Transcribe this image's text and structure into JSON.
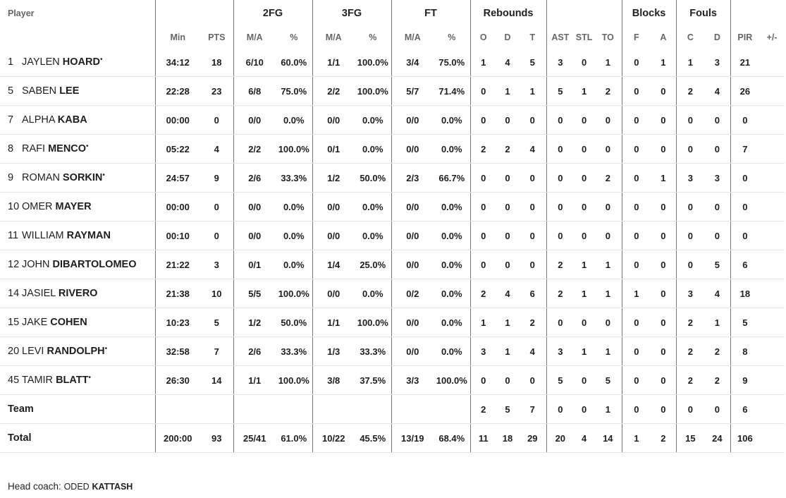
{
  "headers": {
    "player": "Player",
    "groups": {
      "fg2": "2FG",
      "fg3": "3FG",
      "ft": "FT",
      "rebounds": "Rebounds",
      "blocks": "Blocks",
      "fouls": "Fouls"
    },
    "cols": {
      "min": "Min",
      "pts": "PTS",
      "fg2_ma": "M/A",
      "fg2_pct": "%",
      "fg3_ma": "M/A",
      "fg3_pct": "%",
      "ft_ma": "M/A",
      "ft_pct": "%",
      "o": "O",
      "d": "D",
      "t": "T",
      "ast": "AST",
      "stl": "STL",
      "to": "TO",
      "bf": "F",
      "ba": "A",
      "fc": "C",
      "fd": "D",
      "pir": "PIR",
      "pm": "+/-"
    }
  },
  "players": [
    {
      "num": "1",
      "first": "JAYLEN",
      "last": "HOARD",
      "starter": "•",
      "min": "34:12",
      "pts": "18",
      "fg2_ma": "6/10",
      "fg2_pct": "60.0%",
      "fg3_ma": "1/1",
      "fg3_pct": "100.0%",
      "ft_ma": "3/4",
      "ft_pct": "75.0%",
      "o": "1",
      "d": "4",
      "t": "5",
      "ast": "3",
      "stl": "0",
      "to": "1",
      "bf": "0",
      "ba": "1",
      "fc": "1",
      "fd": "3",
      "pir": "21",
      "pm": ""
    },
    {
      "num": "5",
      "first": "SABEN",
      "last": "LEE",
      "starter": "",
      "min": "22:28",
      "pts": "23",
      "fg2_ma": "6/8",
      "fg2_pct": "75.0%",
      "fg3_ma": "2/2",
      "fg3_pct": "100.0%",
      "ft_ma": "5/7",
      "ft_pct": "71.4%",
      "o": "0",
      "d": "1",
      "t": "1",
      "ast": "5",
      "stl": "1",
      "to": "2",
      "bf": "0",
      "ba": "0",
      "fc": "2",
      "fd": "4",
      "pir": "26",
      "pm": ""
    },
    {
      "num": "7",
      "first": "ALPHA",
      "last": "KABA",
      "starter": "",
      "min": "00:00",
      "pts": "0",
      "fg2_ma": "0/0",
      "fg2_pct": "0.0%",
      "fg3_ma": "0/0",
      "fg3_pct": "0.0%",
      "ft_ma": "0/0",
      "ft_pct": "0.0%",
      "o": "0",
      "d": "0",
      "t": "0",
      "ast": "0",
      "stl": "0",
      "to": "0",
      "bf": "0",
      "ba": "0",
      "fc": "0",
      "fd": "0",
      "pir": "0",
      "pm": ""
    },
    {
      "num": "8",
      "first": "RAFI",
      "last": "MENCO",
      "starter": "•",
      "min": "05:22",
      "pts": "4",
      "fg2_ma": "2/2",
      "fg2_pct": "100.0%",
      "fg3_ma": "0/1",
      "fg3_pct": "0.0%",
      "ft_ma": "0/0",
      "ft_pct": "0.0%",
      "o": "2",
      "d": "2",
      "t": "4",
      "ast": "0",
      "stl": "0",
      "to": "0",
      "bf": "0",
      "ba": "0",
      "fc": "0",
      "fd": "0",
      "pir": "7",
      "pm": ""
    },
    {
      "num": "9",
      "first": "ROMAN",
      "last": "SORKIN",
      "starter": "•",
      "min": "24:57",
      "pts": "9",
      "fg2_ma": "2/6",
      "fg2_pct": "33.3%",
      "fg3_ma": "1/2",
      "fg3_pct": "50.0%",
      "ft_ma": "2/3",
      "ft_pct": "66.7%",
      "o": "0",
      "d": "0",
      "t": "0",
      "ast": "0",
      "stl": "0",
      "to": "2",
      "bf": "0",
      "ba": "1",
      "fc": "3",
      "fd": "3",
      "pir": "0",
      "pm": ""
    },
    {
      "num": "10",
      "first": "OMER",
      "last": "MAYER",
      "starter": "",
      "min": "00:00",
      "pts": "0",
      "fg2_ma": "0/0",
      "fg2_pct": "0.0%",
      "fg3_ma": "0/0",
      "fg3_pct": "0.0%",
      "ft_ma": "0/0",
      "ft_pct": "0.0%",
      "o": "0",
      "d": "0",
      "t": "0",
      "ast": "0",
      "stl": "0",
      "to": "0",
      "bf": "0",
      "ba": "0",
      "fc": "0",
      "fd": "0",
      "pir": "0",
      "pm": ""
    },
    {
      "num": "11",
      "first": "WILLIAM",
      "last": "RAYMAN",
      "starter": "",
      "min": "00:10",
      "pts": "0",
      "fg2_ma": "0/0",
      "fg2_pct": "0.0%",
      "fg3_ma": "0/0",
      "fg3_pct": "0.0%",
      "ft_ma": "0/0",
      "ft_pct": "0.0%",
      "o": "0",
      "d": "0",
      "t": "0",
      "ast": "0",
      "stl": "0",
      "to": "0",
      "bf": "0",
      "ba": "0",
      "fc": "0",
      "fd": "0",
      "pir": "0",
      "pm": ""
    },
    {
      "num": "12",
      "first": "JOHN",
      "last": "DIBARTOLOMEO",
      "starter": "",
      "min": "21:22",
      "pts": "3",
      "fg2_ma": "0/1",
      "fg2_pct": "0.0%",
      "fg3_ma": "1/4",
      "fg3_pct": "25.0%",
      "ft_ma": "0/0",
      "ft_pct": "0.0%",
      "o": "0",
      "d": "0",
      "t": "0",
      "ast": "2",
      "stl": "1",
      "to": "1",
      "bf": "0",
      "ba": "0",
      "fc": "0",
      "fd": "5",
      "pir": "6",
      "pm": ""
    },
    {
      "num": "14",
      "first": "JASIEL",
      "last": "RIVERO",
      "starter": "",
      "min": "21:38",
      "pts": "10",
      "fg2_ma": "5/5",
      "fg2_pct": "100.0%",
      "fg3_ma": "0/0",
      "fg3_pct": "0.0%",
      "ft_ma": "0/2",
      "ft_pct": "0.0%",
      "o": "2",
      "d": "4",
      "t": "6",
      "ast": "2",
      "stl": "1",
      "to": "1",
      "bf": "1",
      "ba": "0",
      "fc": "3",
      "fd": "4",
      "pir": "18",
      "pm": ""
    },
    {
      "num": "15",
      "first": "JAKE",
      "last": "COHEN",
      "starter": "",
      "min": "10:23",
      "pts": "5",
      "fg2_ma": "1/2",
      "fg2_pct": "50.0%",
      "fg3_ma": "1/1",
      "fg3_pct": "100.0%",
      "ft_ma": "0/0",
      "ft_pct": "0.0%",
      "o": "1",
      "d": "1",
      "t": "2",
      "ast": "0",
      "stl": "0",
      "to": "0",
      "bf": "0",
      "ba": "0",
      "fc": "2",
      "fd": "1",
      "pir": "5",
      "pm": ""
    },
    {
      "num": "20",
      "first": "LEVI",
      "last": "RANDOLPH",
      "starter": "•",
      "min": "32:58",
      "pts": "7",
      "fg2_ma": "2/6",
      "fg2_pct": "33.3%",
      "fg3_ma": "1/3",
      "fg3_pct": "33.3%",
      "ft_ma": "0/0",
      "ft_pct": "0.0%",
      "o": "3",
      "d": "1",
      "t": "4",
      "ast": "3",
      "stl": "1",
      "to": "1",
      "bf": "0",
      "ba": "0",
      "fc": "2",
      "fd": "2",
      "pir": "8",
      "pm": ""
    },
    {
      "num": "45",
      "first": "TAMIR",
      "last": "BLATT",
      "starter": "•",
      "min": "26:30",
      "pts": "14",
      "fg2_ma": "1/1",
      "fg2_pct": "100.0%",
      "fg3_ma": "3/8",
      "fg3_pct": "37.5%",
      "ft_ma": "3/3",
      "ft_pct": "100.0%",
      "o": "0",
      "d": "0",
      "t": "0",
      "ast": "5",
      "stl": "0",
      "to": "5",
      "bf": "0",
      "ba": "0",
      "fc": "2",
      "fd": "2",
      "pir": "9",
      "pm": ""
    }
  ],
  "team": {
    "label": "Team",
    "min": "",
    "pts": "",
    "fg2_ma": "",
    "fg2_pct": "",
    "fg3_ma": "",
    "fg3_pct": "",
    "ft_ma": "",
    "ft_pct": "",
    "o": "2",
    "d": "5",
    "t": "7",
    "ast": "0",
    "stl": "0",
    "to": "1",
    "bf": "0",
    "ba": "0",
    "fc": "0",
    "fd": "0",
    "pir": "6",
    "pm": ""
  },
  "total": {
    "label": "Total",
    "min": "200:00",
    "pts": "93",
    "fg2_ma": "25/41",
    "fg2_pct": "61.0%",
    "fg3_ma": "10/22",
    "fg3_pct": "45.5%",
    "ft_ma": "13/19",
    "ft_pct": "68.4%",
    "o": "11",
    "d": "18",
    "t": "29",
    "ast": "20",
    "stl": "4",
    "to": "14",
    "bf": "1",
    "ba": "2",
    "fc": "15",
    "fd": "24",
    "pir": "106",
    "pm": ""
  },
  "coach": {
    "label": "Head coach:",
    "first": "ODED",
    "last": "KATTASH"
  }
}
